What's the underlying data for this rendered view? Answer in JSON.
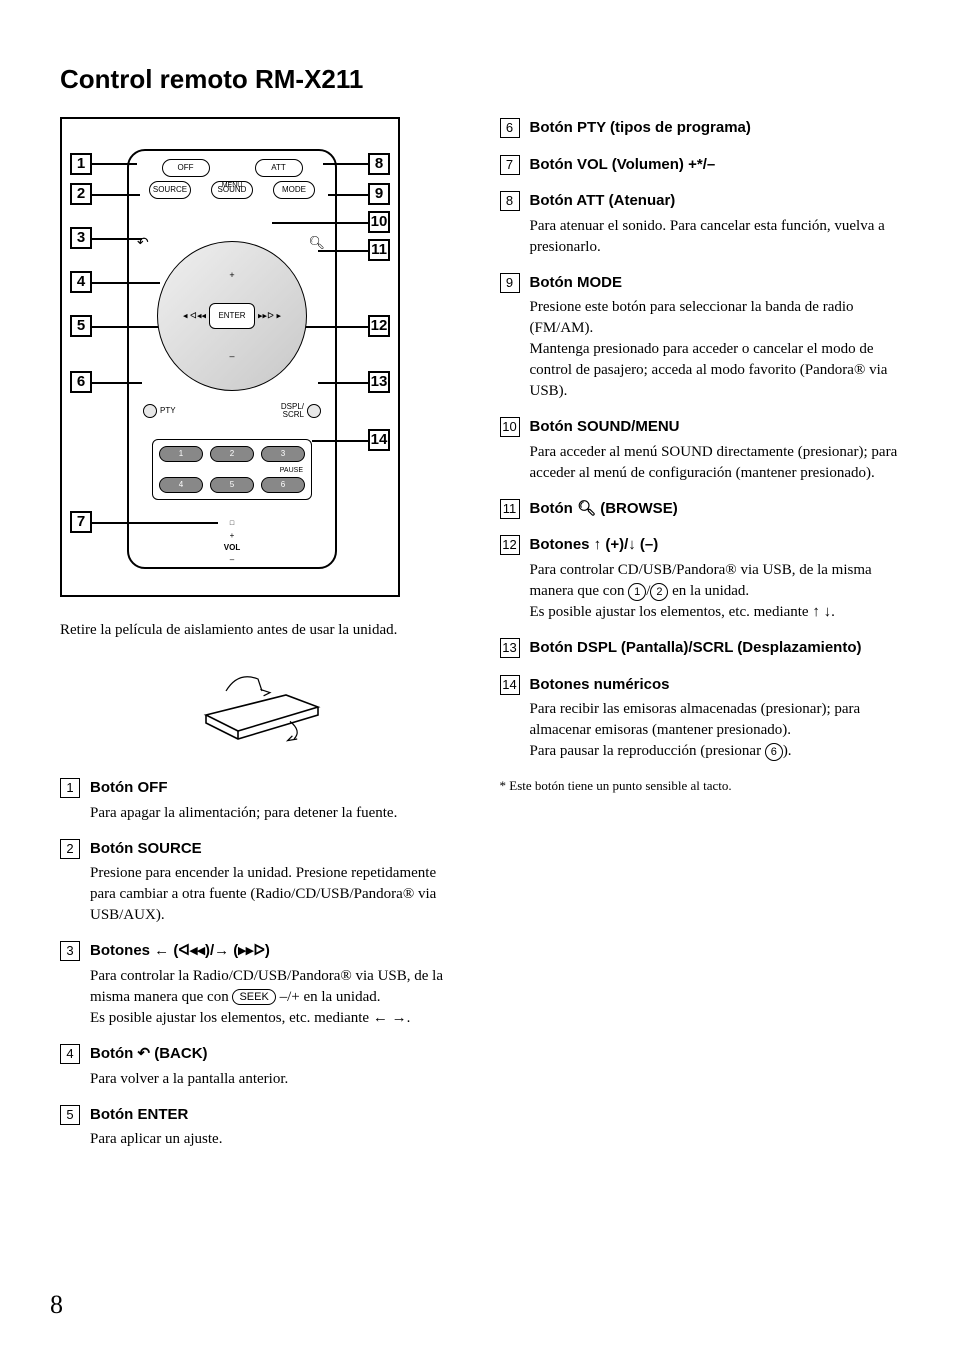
{
  "heading": "Control remoto RM-X211",
  "diagram": {
    "callouts_left": [
      "1",
      "2",
      "3",
      "4",
      "5",
      "6",
      "7"
    ],
    "callouts_right": [
      "8",
      "9",
      "10",
      "11",
      "12",
      "13",
      "14"
    ],
    "btn_off": "OFF",
    "btn_att": "ATT",
    "btn_source": "SOURCE",
    "btn_sound": "SOUND",
    "btn_mode": "MODE",
    "btn_enter": "ENTER",
    "label_menu": "MENU",
    "label_pty": "PTY",
    "label_dspl": "DSPL/\nSCRL",
    "label_pause": "PAUSE",
    "label_vol": "VOL",
    "nums": [
      "1",
      "2",
      "3",
      "4",
      "5",
      "6"
    ]
  },
  "intro": "Retire la película de aislamiento antes de usar la unidad.",
  "items_left": [
    {
      "num": "1",
      "title": "Botón OFF",
      "desc": "Para apagar la alimentación; para detener la fuente."
    },
    {
      "num": "2",
      "title": "Botón SOURCE",
      "desc": "Presione para encender la unidad. Presione repetidamente para cambiar a otra fuente (Radio/CD/USB/Pandora® via USB/AUX)."
    },
    {
      "num": "3",
      "title_parts": {
        "pre": "Botones ",
        "mid1": " (",
        "mid2": ")/",
        "mid3": " (",
        "end": ")"
      },
      "desc_parts": {
        "p1": "Para controlar la Radio/CD/USB/Pandora® via USB, de la misma manera que con ",
        "seek": "SEEK",
        "p2": " –/+ en la unidad.",
        "p3": "Es posible ajustar los elementos, etc. mediante ",
        "p4": "."
      }
    },
    {
      "num": "4",
      "title_parts": {
        "pre": "Botón ",
        "suffix": " (BACK)"
      },
      "desc": "Para volver a la pantalla anterior."
    },
    {
      "num": "5",
      "title": "Botón ENTER",
      "desc": "Para aplicar un ajuste."
    }
  ],
  "items_right": [
    {
      "num": "6",
      "title": "Botón PTY (tipos de programa)"
    },
    {
      "num": "7",
      "title": "Botón VOL (Volumen) +*/–"
    },
    {
      "num": "8",
      "title": "Botón ATT (Atenuar)",
      "desc": "Para atenuar el sonido. Para cancelar esta función, vuelva a presionarlo."
    },
    {
      "num": "9",
      "title": "Botón MODE",
      "desc": "Presione este botón para seleccionar la banda de radio (FM/AM).\nMantenga presionado para acceder o cancelar el modo de control de pasajero; acceda al modo favorito (Pandora® via USB)."
    },
    {
      "num": "10",
      "title": "Botón SOUND/MENU",
      "desc": "Para acceder al menú SOUND directamente (presionar); para acceder al menú de configuración (mantener presionado)."
    },
    {
      "num": "11",
      "title_parts": {
        "pre": "Botón ",
        "suffix": " (BROWSE)"
      }
    },
    {
      "num": "12",
      "title_parts": {
        "pre": "Botones ",
        "mid": " (+)/",
        "suffix": " (–)"
      },
      "desc_parts": {
        "p1": "Para controlar CD/USB/Pandora® via USB, de la misma manera que con ",
        "c1": "1",
        "slash": "/",
        "c2": "2",
        "p2": " en la unidad.",
        "p3": "Es posible ajustar los elementos, etc. mediante ",
        "p4": "."
      }
    },
    {
      "num": "13",
      "title": "Botón DSPL (Pantalla)/SCRL (Desplazamiento)"
    },
    {
      "num": "14",
      "title": "Botones numéricos",
      "desc_parts": {
        "p1": "Para recibir las emisoras almacenadas (presionar); para almacenar emisoras (mantener presionado).",
        "p2": "Para pausar la reproducción (presionar ",
        "c": "6",
        "p3": ")."
      }
    }
  ],
  "footnote": "* Este botón tiene un punto sensible al tacto.",
  "page_number": "8"
}
